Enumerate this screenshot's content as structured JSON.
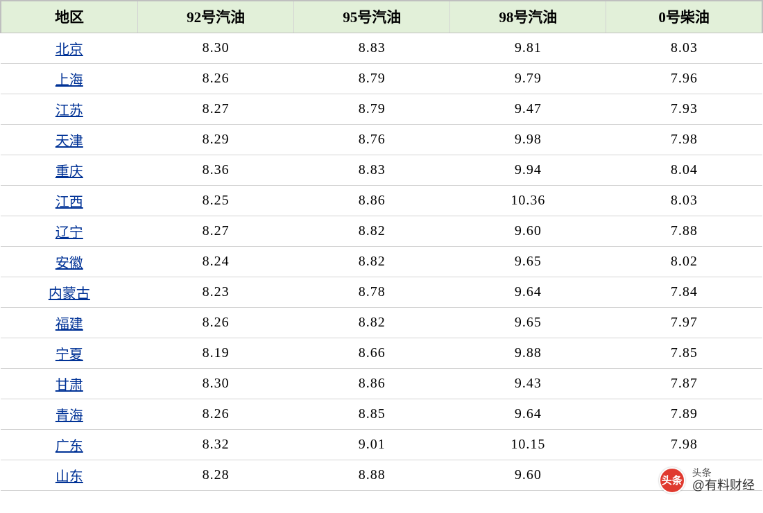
{
  "table": {
    "header_bg": "#e2f0d9",
    "border_color": "#d3d3d3",
    "link_color": "#003296",
    "columns": [
      "地区",
      "92号汽油",
      "95号汽油",
      "98号汽油",
      "0号柴油"
    ],
    "rows": [
      {
        "region": "北京",
        "p92": "8.30",
        "p95": "8.83",
        "p98": "9.81",
        "diesel": "8.03"
      },
      {
        "region": "上海",
        "p92": "8.26",
        "p95": "8.79",
        "p98": "9.79",
        "diesel": "7.96"
      },
      {
        "region": "江苏",
        "p92": "8.27",
        "p95": "8.79",
        "p98": "9.47",
        "diesel": "7.93"
      },
      {
        "region": "天津",
        "p92": "8.29",
        "p95": "8.76",
        "p98": "9.98",
        "diesel": "7.98"
      },
      {
        "region": "重庆",
        "p92": "8.36",
        "p95": "8.83",
        "p98": "9.94",
        "diesel": "8.04"
      },
      {
        "region": "江西",
        "p92": "8.25",
        "p95": "8.86",
        "p98": "10.36",
        "diesel": "8.03"
      },
      {
        "region": "辽宁",
        "p92": "8.27",
        "p95": "8.82",
        "p98": "9.60",
        "diesel": "7.88"
      },
      {
        "region": "安徽",
        "p92": "8.24",
        "p95": "8.82",
        "p98": "9.65",
        "diesel": "8.02"
      },
      {
        "region": "内蒙古",
        "p92": "8.23",
        "p95": "8.78",
        "p98": "9.64",
        "diesel": "7.84"
      },
      {
        "region": "福建",
        "p92": "8.26",
        "p95": "8.82",
        "p98": "9.65",
        "diesel": "7.97"
      },
      {
        "region": "宁夏",
        "p92": "8.19",
        "p95": "8.66",
        "p98": "9.88",
        "diesel": "7.85"
      },
      {
        "region": "甘肃",
        "p92": "8.30",
        "p95": "8.86",
        "p98": "9.43",
        "diesel": "7.87"
      },
      {
        "region": "青海",
        "p92": "8.26",
        "p95": "8.85",
        "p98": "9.64",
        "diesel": "7.89"
      },
      {
        "region": "广东",
        "p92": "8.32",
        "p95": "9.01",
        "p98": "10.15",
        "diesel": "7.98"
      },
      {
        "region": "山东",
        "p92": "8.28",
        "p95": "8.88",
        "p98": "9.60",
        "diesel": ""
      }
    ]
  },
  "watermark": {
    "logo_text": "头条",
    "line1": "头条",
    "line2": "@有料财经"
  }
}
